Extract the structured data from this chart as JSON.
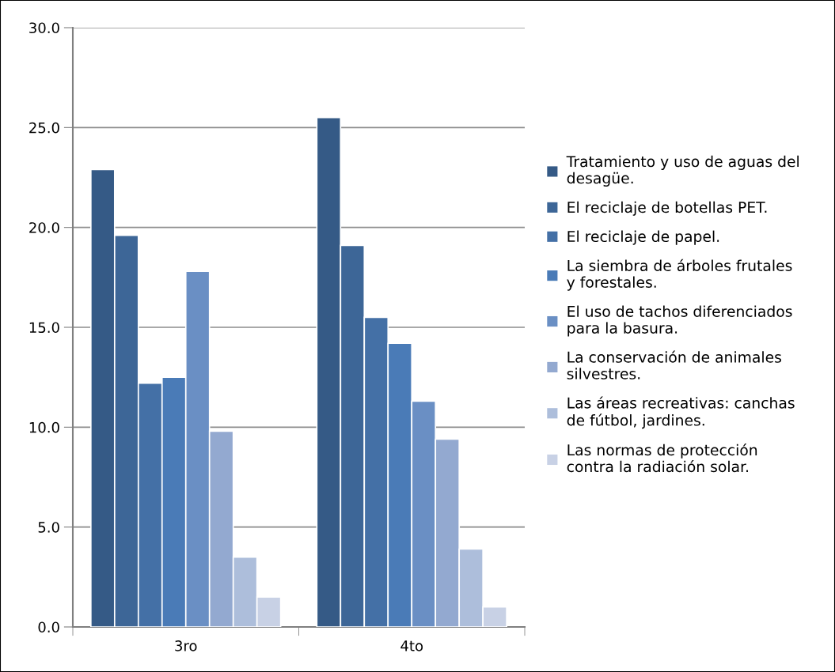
{
  "chart_data": {
    "type": "bar",
    "categories": [
      "3ro",
      "4to"
    ],
    "series": [
      {
        "name": "Tratamiento y uso de aguas del desagüe.",
        "color": "#355a86",
        "values": [
          22.9,
          25.5
        ]
      },
      {
        "name": "El reciclaje de botellas PET.",
        "color": "#3d6697",
        "values": [
          19.6,
          19.1
        ]
      },
      {
        "name": "El reciclaje de papel.",
        "color": "#4470a6",
        "values": [
          12.2,
          15.5
        ]
      },
      {
        "name": "La siembra de árboles frutales y forestales.",
        "color": "#4a7bb7",
        "values": [
          12.5,
          14.2
        ]
      },
      {
        "name": "El uso de tachos diferenciados para la basura.",
        "color": "#6a8fc4",
        "values": [
          17.8,
          11.3
        ]
      },
      {
        "name": "La conservación de animales silvestres.",
        "color": "#93a9d0",
        "values": [
          9.8,
          9.4
        ]
      },
      {
        "name": "Las áreas recreativas: canchas de fútbol, jardines.",
        "color": "#adbedb",
        "values": [
          3.5,
          3.9
        ]
      },
      {
        "name": "Las normas de protección contra la radiación solar.",
        "color": "#c8d1e5",
        "values": [
          1.5,
          1.0
        ]
      }
    ],
    "ylim": [
      0,
      30
    ],
    "yticks": [
      {
        "value": 0,
        "label": "0.0"
      },
      {
        "value": 5,
        "label": "5.0"
      },
      {
        "value": 10,
        "label": "10.0"
      },
      {
        "value": 15,
        "label": "15.0"
      },
      {
        "value": 20,
        "label": "20.0"
      },
      {
        "value": 25,
        "label": "25.0"
      },
      {
        "value": 30,
        "label": "30.0"
      }
    ],
    "grid": "y",
    "legend": "right"
  }
}
